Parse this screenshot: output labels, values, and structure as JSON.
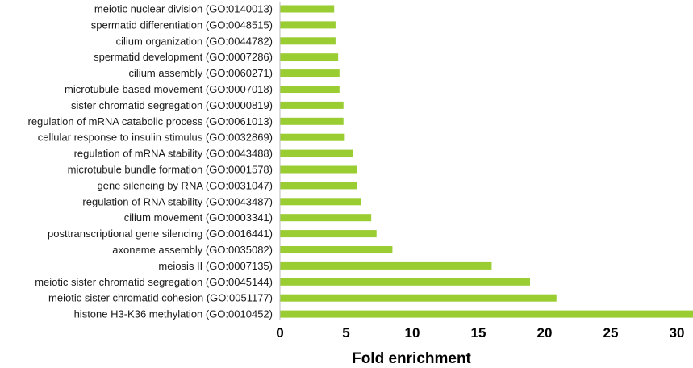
{
  "chart_data": {
    "type": "bar",
    "orientation": "horizontal",
    "xlabel": "Fold enrichment",
    "xlim": [
      0,
      31
    ],
    "xticks": [
      "0",
      "5",
      "10",
      "15",
      "20",
      "25",
      "30"
    ],
    "grid": false,
    "bar_color": "#9acd32",
    "categories": [
      "meiotic nuclear division (GO:0140013)",
      "spermatid differentiation (GO:0048515)",
      "cilium organization (GO:0044782)",
      "spermatid development (GO:0007286)",
      "cilium assembly (GO:0060271)",
      "microtubule-based movement (GO:0007018)",
      "sister chromatid segregation (GO:0000819)",
      "regulation of mRNA catabolic process (GO:0061013)",
      "cellular response to insulin stimulus (GO:0032869)",
      "regulation of mRNA stability (GO:0043488)",
      "microtubule bundle formation (GO:0001578)",
      "gene silencing by RNA (GO:0031047)",
      "regulation of RNA stability (GO:0043487)",
      "cilium movement (GO:0003341)",
      "posttranscriptional gene silencing (GO:0016441)",
      "axoneme assembly (GO:0035082)",
      "meiosis II (GO:0007135)",
      "meiotic sister chromatid segregation (GO:0045144)",
      "meiotic sister chromatid cohesion (GO:0051177)",
      "histone H3-K36 methylation (GO:0010452)"
    ],
    "values": [
      4.1,
      4.2,
      4.2,
      4.4,
      4.5,
      4.5,
      4.8,
      4.8,
      4.9,
      5.5,
      5.8,
      5.8,
      6.1,
      6.9,
      7.3,
      8.5,
      16.0,
      18.9,
      20.9,
      31.5
    ]
  }
}
